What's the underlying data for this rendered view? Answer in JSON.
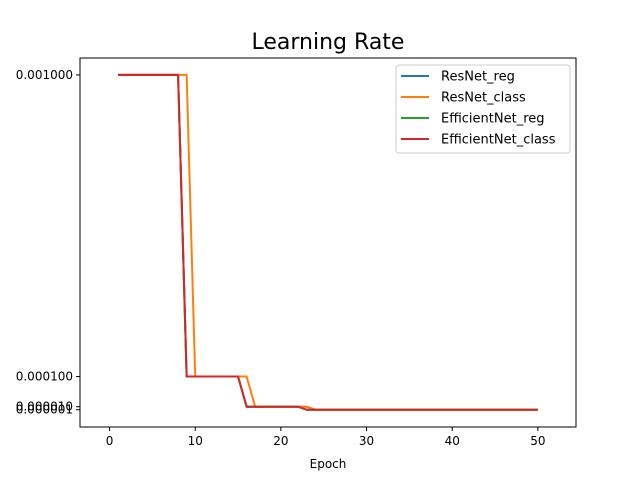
{
  "chart_data": {
    "type": "line",
    "title": "Learning Rate",
    "xlabel": "Epoch",
    "ylabel": "",
    "xlim": [
      -3.45,
      54.45
    ],
    "ylim": [
      -5.05e-05,
      0.0010505
    ],
    "xticks": [
      0,
      10,
      20,
      30,
      40,
      50
    ],
    "xtick_labels": [
      "0",
      "10",
      "20",
      "30",
      "40",
      "50"
    ],
    "yticks": [
      1e-06,
      1e-05,
      0.0001,
      0.001
    ],
    "ytick_labels": [
      "0.000001",
      "0.000010",
      "0.000100",
      "0.001000"
    ],
    "grid": false,
    "legend": "top-right",
    "series": [
      {
        "name": "ResNet_reg",
        "color": "#1f77b4",
        "points": [
          [
            1,
            0.001
          ],
          [
            8,
            0.001
          ],
          [
            9,
            0.0001
          ],
          [
            15,
            0.0001
          ],
          [
            16,
            1e-05
          ],
          [
            23,
            1e-05
          ],
          [
            24,
            1e-06
          ],
          [
            50,
            1e-06
          ]
        ]
      },
      {
        "name": "ResNet_class",
        "color": "#ff7f0e",
        "points": [
          [
            1,
            0.001
          ],
          [
            9,
            0.001
          ],
          [
            10,
            0.0001
          ],
          [
            16,
            0.0001
          ],
          [
            17,
            1e-05
          ],
          [
            23,
            1e-05
          ],
          [
            24,
            1e-06
          ],
          [
            50,
            1e-06
          ]
        ]
      },
      {
        "name": "EfficientNet_reg",
        "color": "#2ca02c",
        "points": [
          [
            1,
            0.001
          ],
          [
            8,
            0.001
          ],
          [
            9,
            0.0001
          ],
          [
            15,
            0.0001
          ],
          [
            16,
            1e-05
          ],
          [
            22,
            1e-05
          ],
          [
            23,
            1e-06
          ],
          [
            50,
            1e-06
          ]
        ]
      },
      {
        "name": "EfficientNet_class",
        "color": "#d62728",
        "points": [
          [
            1,
            0.001
          ],
          [
            8,
            0.001
          ],
          [
            9,
            0.0001
          ],
          [
            15,
            0.0001
          ],
          [
            16,
            1e-05
          ],
          [
            22,
            1e-05
          ],
          [
            23,
            1e-06
          ],
          [
            50,
            1e-06
          ]
        ]
      }
    ]
  }
}
